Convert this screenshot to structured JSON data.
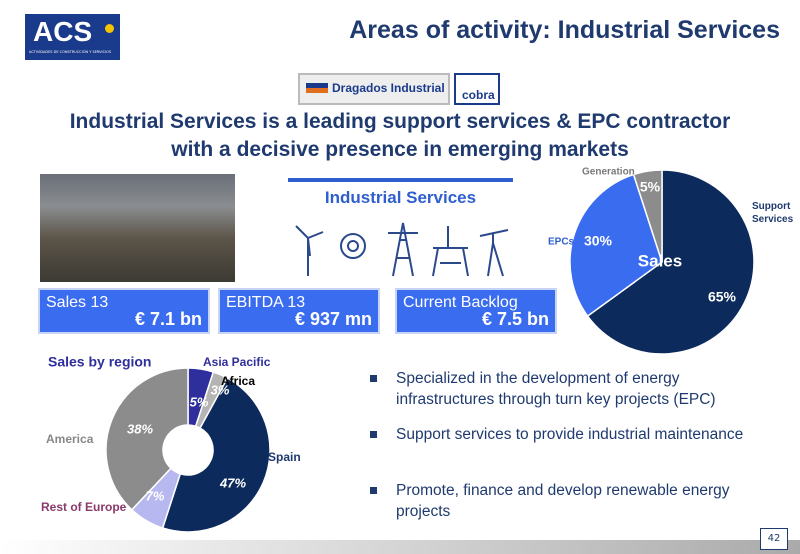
{
  "header": {
    "logo": "ACS",
    "logo_subtitle": "ACTIVIDADES DE CONSTRUCCIÓN Y SERVICIOS",
    "title": "Areas of activity: Industrial Services"
  },
  "brands": [
    "Dragados Industrial",
    "cobra"
  ],
  "headline": [
    "Industrial Services is a leading support services & EPC contractor",
    "with a decisive presence in emerging markets"
  ],
  "section_title": "Industrial Services",
  "kpis": [
    {
      "label": "Sales 13",
      "value": "€ 7.1 bn"
    },
    {
      "label": "EBITDA 13",
      "value": "€ 937 mn"
    },
    {
      "label": "Current Backlog",
      "value": "€ 7.5 bn"
    }
  ],
  "bullets": [
    "Specialized in the development of energy infrastructures through turn key projects (EPC)",
    "Support services to provide industrial maintenance",
    "Promote, finance and develop renewable energy projects"
  ],
  "page_number": "42",
  "chart_data": [
    {
      "type": "pie",
      "center_label": "Sales",
      "categories": [
        "Support Services",
        "EPCs",
        "Generation"
      ],
      "values": [
        65,
        30,
        5
      ],
      "value_labels": [
        "65%",
        "30%",
        "5%"
      ],
      "colors": [
        "#0d2a5c",
        "#3a6cf0",
        "#8c8c8c"
      ]
    },
    {
      "type": "donut",
      "title": "Sales by region",
      "categories": [
        "Asia Pacific",
        "Africa",
        "Spain",
        "Rest of Europe",
        "America"
      ],
      "values": [
        5,
        3,
        47,
        7,
        38
      ],
      "value_labels": [
        "5%",
        "3%",
        "47%",
        "7%",
        "38%"
      ],
      "colors": [
        "#2e2e9c",
        "#b4b4b4",
        "#0d2a5c",
        "#b8b8f0",
        "#8c8c8c"
      ]
    }
  ]
}
